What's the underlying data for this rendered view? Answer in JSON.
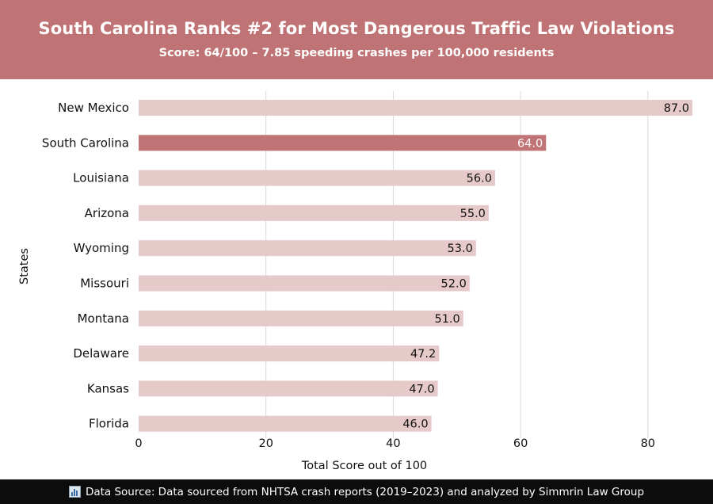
{
  "header": {
    "title": "South Carolina Ranks #2 for Most Dangerous Traffic Law Violations",
    "subtitle": "Score: 64/100 – 7.85 speeding crashes per 100,000 residents"
  },
  "chart_data": {
    "type": "bar",
    "orientation": "horizontal",
    "categories": [
      "New Mexico",
      "South Carolina",
      "Louisiana",
      "Arizona",
      "Wyoming",
      "Missouri",
      "Montana",
      "Delaware",
      "Kansas",
      "Florida"
    ],
    "values": [
      87.0,
      64.0,
      56.0,
      55.0,
      53.0,
      52.0,
      51.0,
      47.2,
      47.0,
      46.0
    ],
    "value_labels": [
      "87.0",
      "64.0",
      "56.0",
      "55.0",
      "53.0",
      "52.0",
      "51.0",
      "47.2",
      "47.0",
      "46.0"
    ],
    "highlight_category": "South Carolina",
    "xlabel": "Total Score out of 100",
    "ylabel": "States",
    "xlim": [
      0,
      87
    ],
    "xticks": [
      0,
      20,
      40,
      60,
      80
    ],
    "grid": "vertical",
    "colors": {
      "bar": "#e6caca",
      "highlight": "#c07476",
      "label_on_bar": "#111111",
      "label_on_highlight": "#ffffff",
      "grid": "#d8d8d8"
    }
  },
  "footer": {
    "icon": "bar-chart-icon",
    "text": "Data Source: Data sourced from NHTSA crash reports (2019–2023) and analyzed by Simmrin Law Group"
  }
}
